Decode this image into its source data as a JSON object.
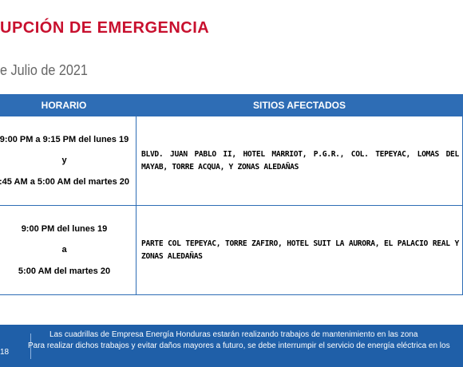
{
  "header": {
    "title": "UPCIÓN DE EMERGENCIA",
    "subtitle": "e Julio de 2021"
  },
  "table": {
    "headers": [
      "HORARIO",
      "SITIOS AFECTADOS"
    ],
    "rows": [
      {
        "horario": [
          "9:00 PM a 9:15 PM del lunes 19",
          "y",
          ":45 AM a 5:00 AM del martes 20"
        ],
        "sitios": "BLVD. JUAN PABLO II, HOTEL MARRIOT, P.G.R., COL. TEPEYAC, LOMAS DEL MAYAB, TORRE ACQUA, Y ZONAS ALEDAÑAS"
      },
      {
        "horario": [
          "9:00 PM  del lunes 19",
          "a",
          "5:00 AM del martes 20"
        ],
        "sitios": "PARTE COL TEPEYAC, TORRE ZAFIRO, HOTEL SUIT LA AURORA, EL PALACIO REAL Y ZONAS ALEDAÑAS"
      }
    ]
  },
  "footer": {
    "page": "18",
    "lines": [
      "Las cuadrillas de Empresa Energía Honduras estarán realizando trabajos de mantenimiento en las zona",
      "Para realizar dichos trabajos y evitar daños mayores a futuro, se debe interrumpir el servicio de energía eléctrica en los"
    ]
  }
}
